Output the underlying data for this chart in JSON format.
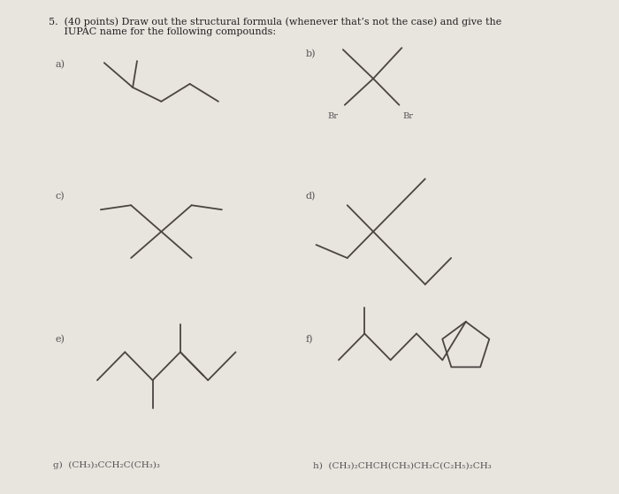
{
  "bg_color": "#e8e4de",
  "line_color": "#4a4540",
  "label_color": "#555555",
  "label_fontsize": 8,
  "formula_fontsize": 7.5,
  "title_fontsize": 8,
  "title_line1": "5.  (40 points) Draw out the structural formula (whenever that’s not the case) and give the",
  "title_line2": "     IUPAC name for the following compounds:",
  "bottom_g": "g)  (CH₃)₃CCH₂C(CH₃)₃",
  "bottom_h": "h)  (CH₃)₂CHCH(CH₃)CH₂C(C₂H₅)₂CH₃"
}
